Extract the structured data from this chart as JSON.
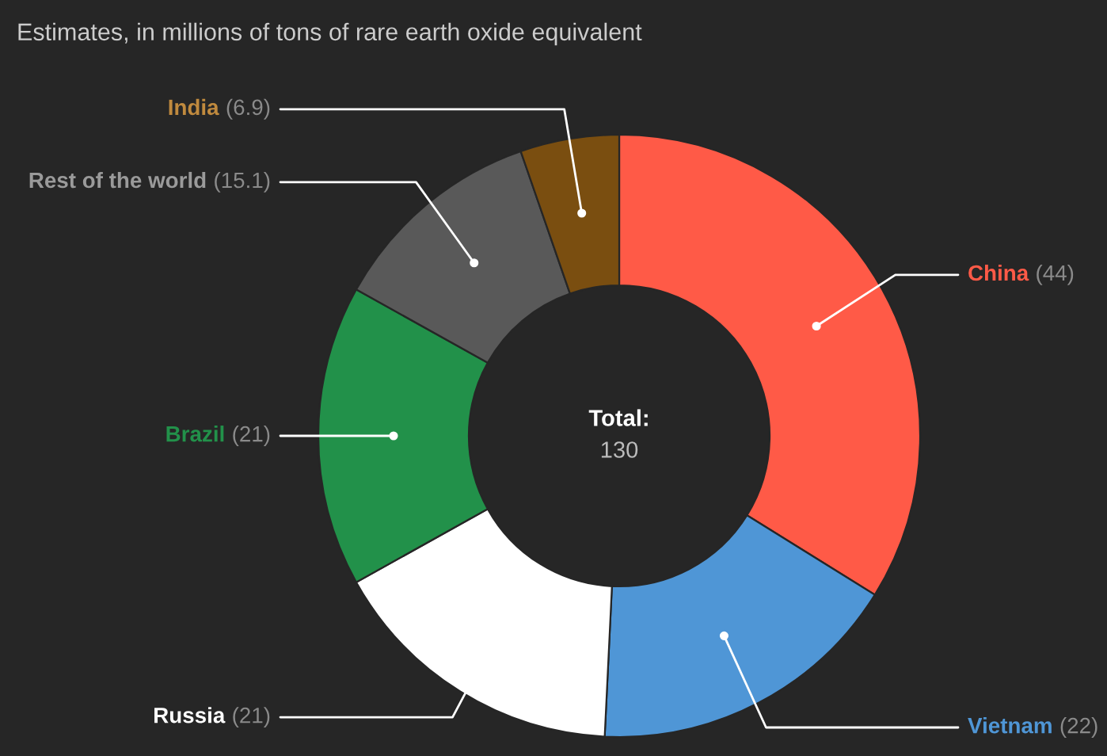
{
  "chart_data": {
    "type": "donut",
    "title": "Estimates, in millions of tons of rare earth oxide equivalent",
    "categories": [
      "China",
      "Vietnam",
      "Russia",
      "Brazil",
      "Rest of the world",
      "India"
    ],
    "values": [
      44,
      22,
      21,
      21,
      15.1,
      6.9
    ],
    "colors": [
      "#ff5a47",
      "#4f96d6",
      "#ffffff",
      "#22914a",
      "#595959",
      "#7a4e10"
    ],
    "value_labels": [
      "(44)",
      "(22)",
      "(21)",
      "(21)",
      "(15.1)",
      "(6.9)"
    ],
    "annotations": [
      "Total:",
      "130"
    ]
  }
}
